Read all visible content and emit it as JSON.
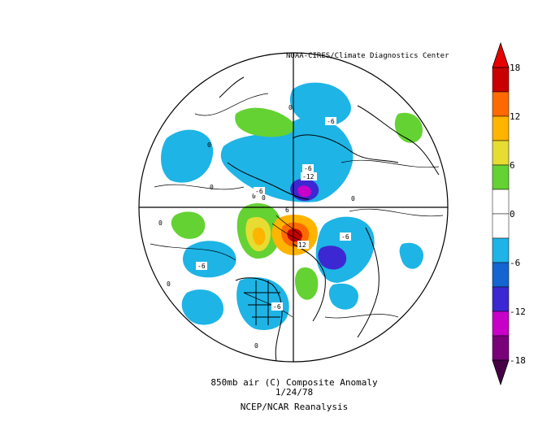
{
  "credit": "NOAA-CIRES/Climate Diagnostics Center",
  "caption": {
    "line1": "850mb air (C) Composite Anomaly",
    "line2": "1/24/78",
    "line3": "NCEP/NCAR Reanalysis"
  },
  "colorbar": {
    "ticks": [
      "18",
      "12",
      "6",
      "0",
      "-6",
      "-12",
      "-18"
    ],
    "colors": [
      "#c80000",
      "#ff6a00",
      "#ffb400",
      "#e6dc32",
      "#64d232",
      "#ffffff",
      "#ffffff",
      "#1eb4e6",
      "#1464d2",
      "#3c28d2",
      "#c800c8",
      "#780078"
    ]
  },
  "contour_labels": [
    "0",
    "0",
    "0",
    "-6",
    "-6",
    "-12",
    "0",
    "0",
    "-6",
    "0",
    "6",
    "12",
    "-6",
    "-6",
    "0",
    "-6",
    "0",
    "0"
  ]
}
